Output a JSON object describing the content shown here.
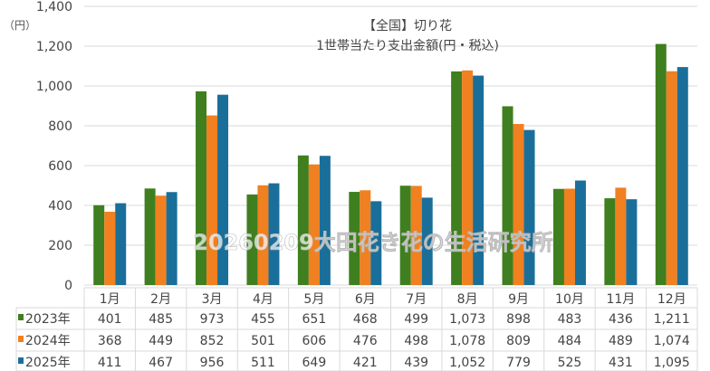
{
  "chart_data": {
    "type": "bar",
    "title_line1": "【全国】切り花",
    "title_line2": "1世帯当たり支出金額(円・税込)",
    "ylabel": "（円）",
    "ylim": [
      0,
      1400
    ],
    "yticks": [
      "0",
      "200",
      "400",
      "600",
      "800",
      "1,000",
      "1,200",
      "1,400"
    ],
    "grid": true,
    "legend": "table-below",
    "categories": [
      "1月",
      "2月",
      "3月",
      "4月",
      "5月",
      "6月",
      "7月",
      "8月",
      "9月",
      "10月",
      "11月",
      "12月"
    ],
    "series": [
      {
        "name": "2023年",
        "color": "#3f7f1f",
        "values": [
          401,
          485,
          973,
          455,
          651,
          468,
          499,
          1073,
          898,
          483,
          436,
          1211
        ],
        "labels": [
          "401",
          "485",
          "973",
          "455",
          "651",
          "468",
          "499",
          "1,073",
          "898",
          "483",
          "436",
          "1,211"
        ]
      },
      {
        "name": "2024年",
        "color": "#f08020",
        "values": [
          368,
          449,
          852,
          501,
          606,
          476,
          498,
          1078,
          809,
          484,
          489,
          1074
        ],
        "labels": [
          "368",
          "449",
          "852",
          "501",
          "606",
          "476",
          "498",
          "1,078",
          "809",
          "484",
          "489",
          "1,074"
        ]
      },
      {
        "name": "2025年",
        "color": "#1a6f9a",
        "values": [
          411,
          467,
          956,
          511,
          649,
          421,
          439,
          1052,
          779,
          525,
          431,
          1095
        ],
        "labels": [
          "411",
          "467",
          "956",
          "511",
          "649",
          "421",
          "439",
          "1,052",
          "779",
          "525",
          "431",
          "1,095"
        ]
      }
    ],
    "watermark": "20260209大田花き花の生活研究所"
  }
}
